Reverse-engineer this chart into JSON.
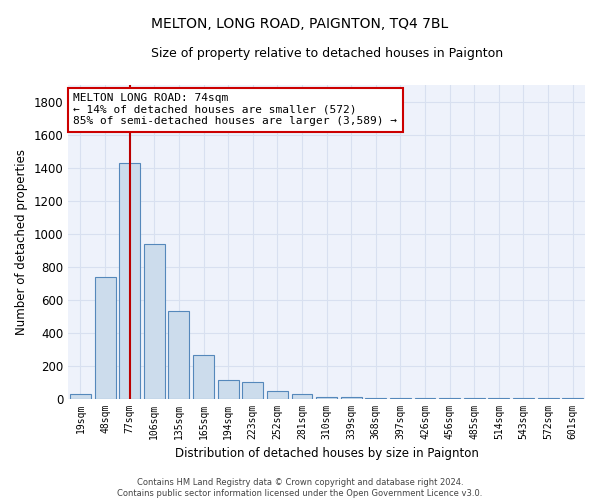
{
  "title": "MELTON, LONG ROAD, PAIGNTON, TQ4 7BL",
  "subtitle": "Size of property relative to detached houses in Paignton",
  "xlabel": "Distribution of detached houses by size in Paignton",
  "ylabel": "Number of detached properties",
  "bar_labels": [
    "19sqm",
    "48sqm",
    "77sqm",
    "106sqm",
    "135sqm",
    "165sqm",
    "194sqm",
    "223sqm",
    "252sqm",
    "281sqm",
    "310sqm",
    "339sqm",
    "368sqm",
    "397sqm",
    "426sqm",
    "456sqm",
    "485sqm",
    "514sqm",
    "543sqm",
    "572sqm",
    "601sqm"
  ],
  "bar_values": [
    30,
    740,
    1430,
    940,
    530,
    265,
    110,
    100,
    45,
    25,
    12,
    8,
    5,
    4,
    3,
    3,
    2,
    2,
    2,
    2,
    2
  ],
  "bar_color": "#ccdcec",
  "bar_edge_color": "#5588bb",
  "background_color": "#eef2fb",
  "grid_color": "#d8e0f0",
  "vline_x": 2,
  "vline_color": "#bb0000",
  "annotation_line1": "MELTON LONG ROAD: 74sqm",
  "annotation_line2": "← 14% of detached houses are smaller (572)",
  "annotation_line3": "85% of semi-detached houses are larger (3,589) →",
  "annotation_box_color": "#ffffff",
  "annotation_box_edge": "#cc0000",
  "footer_text": "Contains HM Land Registry data © Crown copyright and database right 2024.\nContains public sector information licensed under the Open Government Licence v3.0.",
  "ylim": [
    0,
    1900
  ],
  "yticks": [
    0,
    200,
    400,
    600,
    800,
    1000,
    1200,
    1400,
    1600,
    1800
  ]
}
